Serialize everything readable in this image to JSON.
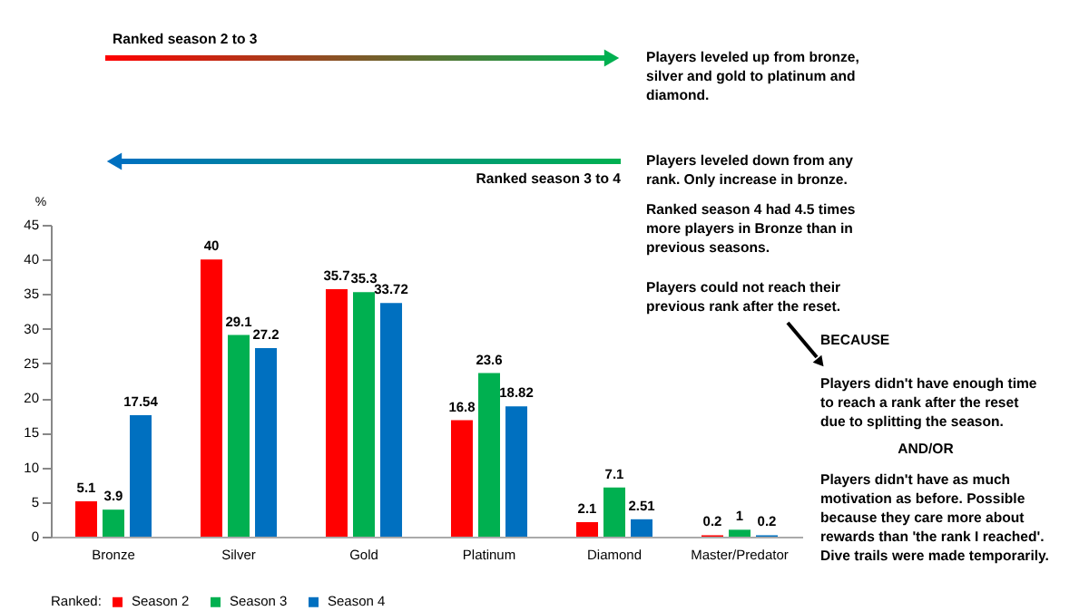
{
  "chart_data": {
    "type": "bar",
    "categories": [
      "Bronze",
      "Silver",
      "Gold",
      "Platinum",
      "Diamond",
      "Master/Predator"
    ],
    "series": [
      {
        "name": "Season 2",
        "color": "#ff0000",
        "values": [
          5.1,
          40,
          35.7,
          16.8,
          2.1,
          0.2
        ]
      },
      {
        "name": "Season 3",
        "color": "#00b050",
        "values": [
          3.9,
          29.1,
          35.3,
          23.6,
          7.1,
          1
        ]
      },
      {
        "name": "Season 4",
        "color": "#0070c0",
        "values": [
          17.54,
          27.2,
          33.72,
          18.82,
          2.51,
          0.2
        ]
      }
    ],
    "ylabel": "%",
    "ylim": [
      0,
      45
    ],
    "yticks": [
      0,
      5,
      10,
      15,
      20,
      25,
      30,
      35,
      40,
      45
    ],
    "legend_title": "Ranked:",
    "legend": "bottom",
    "data_labels": true,
    "grid": false,
    "annotations": [
      "Ranked season 2 to 3",
      "Ranked season 3 to 4",
      "Players leveled up from bronze,\nsilver and gold to platinum and\ndiamond.",
      "Players leveled down from any\nrank. Only increase in bronze.",
      "Ranked season 4 had 4.5 times\nmore players in Bronze than in\nprevious seasons.",
      "Players could not reach their\nprevious rank after the reset.",
      "BECAUSE",
      "Players didn't have enough time\nto reach a rank after the reset\ndue to splitting the season.",
      "AND/OR",
      "Players didn't have as much\nmotivation as before. Possible\nbecause they care more about\nrewards than 'the rank I reached'.\nDive trails were made temporarily."
    ]
  }
}
